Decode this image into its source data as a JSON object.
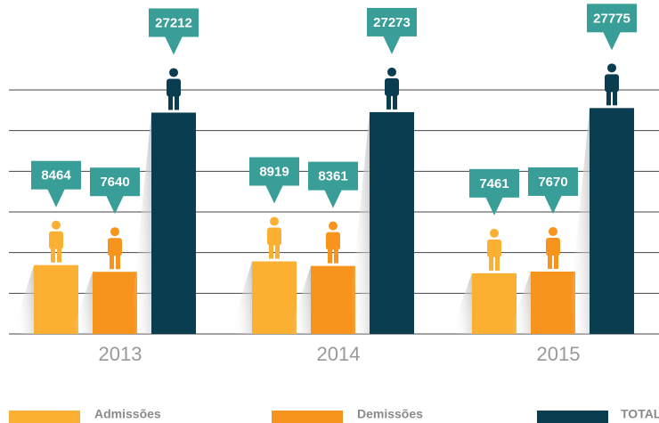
{
  "chart_data": {
    "type": "bar",
    "categories": [
      "2013",
      "2014",
      "2015"
    ],
    "series": [
      {
        "name": "Admissões",
        "color": "#fbb034",
        "values": [
          8464,
          8919,
          7461
        ]
      },
      {
        "name": "Demissões",
        "color": "#f7941d",
        "values": [
          7640,
          8361,
          7670
        ]
      },
      {
        "name": "TOTAL",
        "color": "#0b3d51",
        "values": [
          27212,
          27273,
          27775
        ]
      }
    ],
    "ylim": [
      0,
      30000
    ],
    "yticks": [
      0,
      5000,
      10000,
      15000,
      20000,
      25000,
      30000
    ],
    "grid": true,
    "legend": "bottom",
    "label_color": "#3a9e98"
  }
}
